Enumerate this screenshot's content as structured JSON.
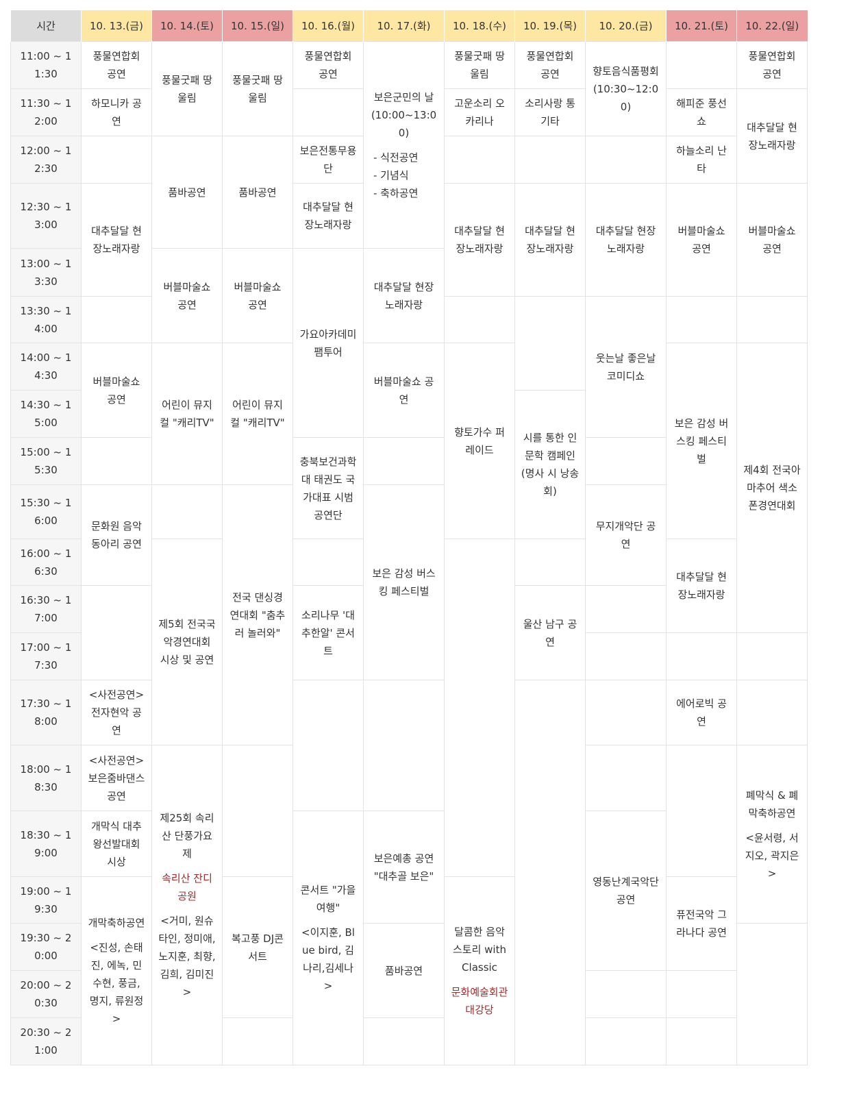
{
  "header": {
    "time_label": "시간"
  },
  "times": [
    "11:00 ~ 11:30",
    "11:30 ~ 12:00",
    "12:00 ~ 12:30",
    "12:30 ~ 13:00",
    "13:00 ~ 13:30",
    "13:30 ~ 14:00",
    "14:00 ~ 14:30",
    "14:30 ~ 15:00",
    "15:00 ~ 15:30",
    "15:30 ~ 16:00",
    "16:00 ~ 16:30",
    "16:30 ~ 17:00",
    "17:00 ~ 17:30",
    "17:30 ~ 18:00",
    "18:00 ~ 18:30",
    "18:30 ~ 19:00",
    "19:00 ~ 19:30",
    "19:30 ~ 20:00",
    "20:00 ~ 20:30",
    "20:30 ~ 21:00"
  ],
  "columns": [
    {
      "date": "10. 13.(금)",
      "weekend": false,
      "cells": [
        {
          "span": 1,
          "title": "풍물연합회 공연"
        },
        {
          "span": 1,
          "title": "하모니카 공연"
        },
        {
          "span": 1
        },
        {
          "span": 2,
          "title": "대추달달 현장노래자랑"
        },
        {
          "span": 1
        },
        {
          "span": 2,
          "title": "버블마술쇼 공연"
        },
        {
          "span": 1
        },
        {
          "span": 2,
          "title": "문화원 음악동아리 공연"
        },
        {
          "span": 2
        },
        {
          "span": 1,
          "title": "<사전공연> 전자현악 공연"
        },
        {
          "span": 1,
          "title": "<사전공연> 보은줌바댄스 공연"
        },
        {
          "span": 1,
          "title": "개막식 대추왕선발대회 시상"
        },
        {
          "span": 4,
          "title": "개막축하공연",
          "detail": [
            "<진성, 손태진, 에녹, 민수현, 풍금, 명지, 류원정>"
          ]
        }
      ]
    },
    {
      "date": "10. 14.(토)",
      "weekend": true,
      "cells": [
        {
          "span": 2,
          "title": "풍물굿패 땅울림"
        },
        {
          "span": 2,
          "title": "품바공연"
        },
        {
          "span": 2,
          "title": "버블마술쇼 공연"
        },
        {
          "span": 3,
          "title": "어린이 뮤지컬 \"캐리TV\""
        },
        {
          "span": 1
        },
        {
          "span": 4,
          "title": "제5회 전국국악경연대회 시상 및 공연"
        },
        {
          "span": 6,
          "title": "제25회 속리산 단풍가요제",
          "venue": "속리산 잔디공원",
          "detail": [
            "<거미, 원슈타인, 정미애, 노지훈, 최향, 김희, 김미진>"
          ]
        }
      ]
    },
    {
      "date": "10. 15.(일)",
      "weekend": true,
      "cells": [
        {
          "span": 2,
          "title": "풍물굿패 땅울림"
        },
        {
          "span": 2,
          "title": "품바공연"
        },
        {
          "span": 2,
          "title": "버블마술쇼 공연"
        },
        {
          "span": 3,
          "title": "어린이 뮤지컬 \"캐리TV\""
        },
        {
          "span": 5,
          "title": "전국 댄싱경연대회 \"춤추러 놀러와\""
        },
        {
          "span": 2
        },
        {
          "span": 3,
          "title": "복고풍 DJ콘서트"
        },
        {
          "span": 1
        }
      ]
    },
    {
      "date": "10. 16.(월)",
      "weekend": false,
      "cells": [
        {
          "span": 1,
          "title": "풍물연합회 공연"
        },
        {
          "span": 1
        },
        {
          "span": 1,
          "title": "보은전통무용단"
        },
        {
          "span": 1,
          "title": "대추달달 현장노래자랑"
        },
        {
          "span": 4,
          "title": "가요아카데미 팸투어"
        },
        {
          "span": 2,
          "title": "충북보건과학대 태권도 국가대표 시범공연단"
        },
        {
          "span": 1
        },
        {
          "span": 2,
          "title": "소리나무 '대추한알' 콘서트"
        },
        {
          "span": 2
        },
        {
          "span": 5,
          "title": "콘서트 \"가을여행\"",
          "detail": [
            "<이지훈, Blue bird, 김나리,김세나>"
          ]
        }
      ]
    },
    {
      "date": "10. 17.(화)",
      "weekend": false,
      "cells": [
        {
          "span": 4,
          "title": "보은군민의 날 (10:00~13:00)",
          "detail": [
            "- 식전공연",
            "- 기념식",
            "- 축하공연"
          ]
        },
        {
          "span": 2,
          "title": "대추달달 현장노래자랑"
        },
        {
          "span": 2,
          "title": "버블마술쇼 공연"
        },
        {
          "span": 1
        },
        {
          "span": 4,
          "title": "보은 감성 버스킹 페스티벌"
        },
        {
          "span": 2
        },
        {
          "span": 2,
          "title": "보은예총 공연 \"대추골 보은\""
        },
        {
          "span": 2,
          "title": "품바공연"
        },
        {
          "span": 1
        }
      ]
    },
    {
      "date": "10. 18.(수)",
      "weekend": false,
      "cells": [
        {
          "span": 1,
          "title": "풍물굿패 땅울림"
        },
        {
          "span": 1,
          "title": "고운소리 오카리나"
        },
        {
          "span": 1
        },
        {
          "span": 2,
          "title": "대추달달 현장노래자랑"
        },
        {
          "span": 1
        },
        {
          "span": 4,
          "title": "향토가수 퍼레이드"
        },
        {
          "span": 6
        },
        {
          "span": 4,
          "title": "달콤한 음악 스토리 with Classic",
          "venue": "문화예술회관 대강당"
        }
      ]
    },
    {
      "date": "10. 19.(목)",
      "weekend": false,
      "cells": [
        {
          "span": 1,
          "title": "풍물연합회 공연"
        },
        {
          "span": 1,
          "title": "소리사랑 통기타"
        },
        {
          "span": 1
        },
        {
          "span": 2,
          "title": "대추달달 현장노래자랑"
        },
        {
          "span": 2
        },
        {
          "span": 3,
          "title": "시를 통한 인문학 캠페인 (명사 시 낭송회)"
        },
        {
          "span": 1
        },
        {
          "span": 2,
          "title": "울산 남구 공연"
        },
        {
          "span": 7
        }
      ]
    },
    {
      "date": "10. 20.(금)",
      "weekend": false,
      "cells": [
        {
          "span": 2,
          "title": "향토음식품평회 (10:30~12:00)"
        },
        {
          "span": 1
        },
        {
          "span": 2,
          "title": "대추달달 현장노래자랑"
        },
        {
          "span": 3,
          "title": "웃는날 좋은날 코미디쇼"
        },
        {
          "span": 1
        },
        {
          "span": 2,
          "title": "무지개악단 공연"
        },
        {
          "span": 1
        },
        {
          "span": 1
        },
        {
          "span": 1
        },
        {
          "span": 1
        },
        {
          "span": 3,
          "title": "영동난계국악단 공연"
        },
        {
          "span": 1
        },
        {
          "span": 1
        }
      ]
    },
    {
      "date": "10. 21.(토)",
      "weekend": true,
      "cells": [
        {
          "span": 1
        },
        {
          "span": 1,
          "title": "해피준 풍선쇼"
        },
        {
          "span": 1,
          "title": "하늘소리 난타"
        },
        {
          "span": 2,
          "title": "버블마술쇼 공연"
        },
        {
          "span": 1
        },
        {
          "span": 4,
          "title": "보은 감성 버스킹 페스티벌"
        },
        {
          "span": 2,
          "title": "대추달달 현장노래자랑"
        },
        {
          "span": 1
        },
        {
          "span": 1,
          "title": "에어로빅 공연"
        },
        {
          "span": 2
        },
        {
          "span": 2,
          "title": "퓨전국악 그라나다 공연"
        },
        {
          "span": 1
        },
        {
          "span": 1
        }
      ]
    },
    {
      "date": "10. 22.(일)",
      "weekend": true,
      "cells": [
        {
          "span": 1,
          "title": "풍물연합회 공연"
        },
        {
          "span": 2,
          "title": "대추달달 현장노래자랑"
        },
        {
          "span": 2,
          "title": "버블마술쇼 공연"
        },
        {
          "span": 1
        },
        {
          "span": 6,
          "title": "제4회 전국아마추어 색소폰경연대회"
        },
        {
          "span": 1
        },
        {
          "span": 1
        },
        {
          "span": 3,
          "title": "폐막식 & 폐막축하공연",
          "detail": [
            "<윤서령, 서지오, 곽지은>"
          ]
        },
        {
          "span": 3
        }
      ]
    }
  ]
}
